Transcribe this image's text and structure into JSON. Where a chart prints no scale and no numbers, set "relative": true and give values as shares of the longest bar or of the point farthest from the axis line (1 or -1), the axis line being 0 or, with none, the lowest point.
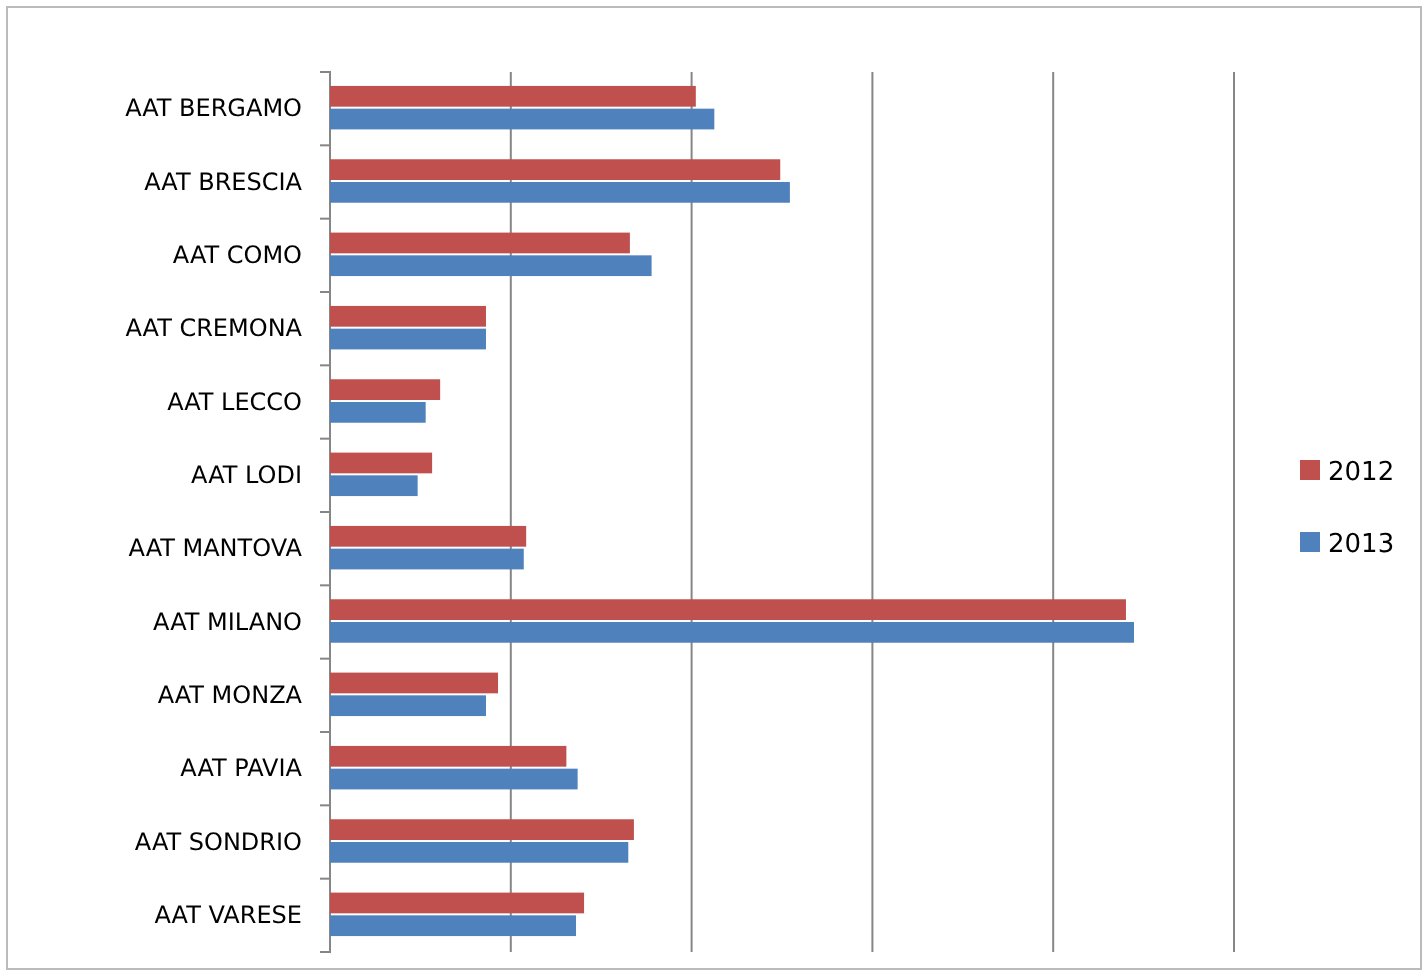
{
  "chart_data": {
    "type": "bar",
    "orientation": "horizontal",
    "relative": true,
    "grid": "x",
    "legend": "right",
    "categories": [
      "AAT BERGAMO",
      "AAT BRESCIA",
      "AAT COMO",
      "AAT CREMONA",
      "AAT LECCO",
      "AAT LODI",
      "AAT MANTOVA",
      "AAT MILANO",
      "AAT MONZA",
      "AAT PAVIA",
      "AAT SONDRIO",
      "AAT VARESE"
    ],
    "series": [
      {
        "name": "2012",
        "color": "#c0504d",
        "values": [
          0.455,
          0.56,
          0.373,
          0.194,
          0.137,
          0.127,
          0.244,
          0.99,
          0.209,
          0.294,
          0.378,
          0.316
        ]
      },
      {
        "name": "2013",
        "color": "#4f81bd",
        "values": [
          0.478,
          0.572,
          0.4,
          0.194,
          0.119,
          0.109,
          0.241,
          1,
          0.194,
          0.308,
          0.371,
          0.306
        ]
      }
    ]
  }
}
